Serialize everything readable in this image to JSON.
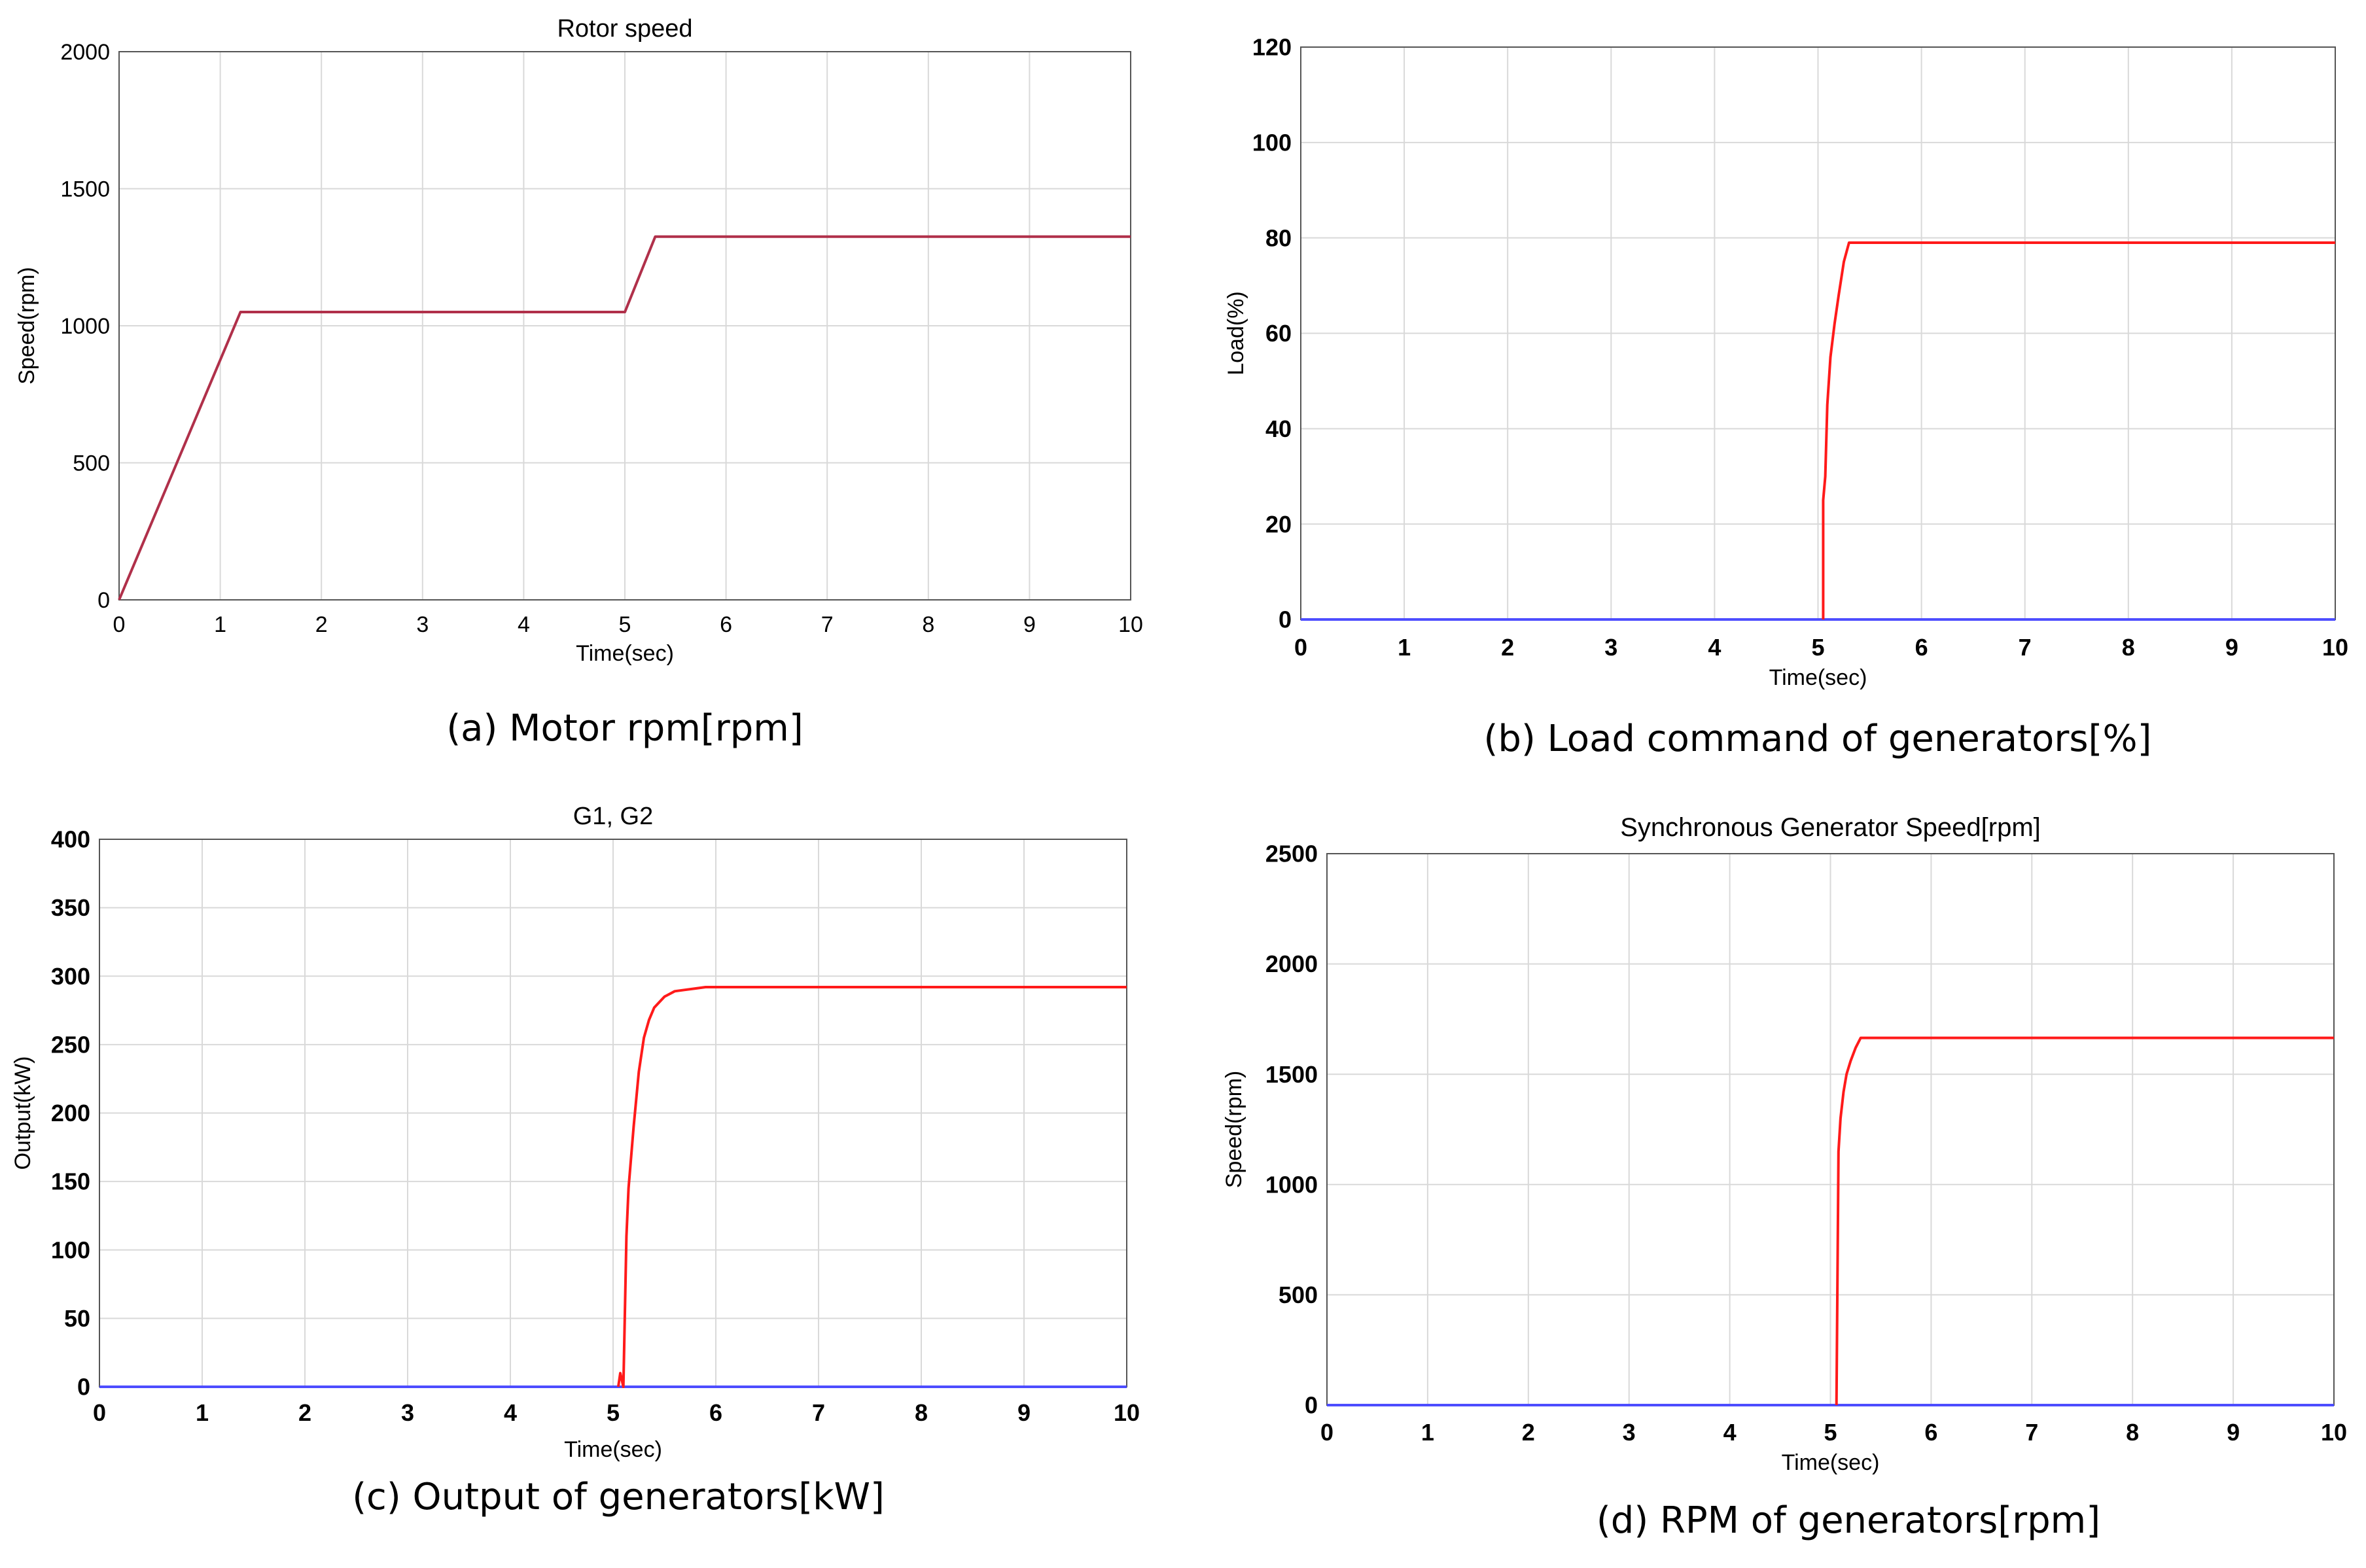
{
  "colors": {
    "series_red": "#ff1a1a",
    "series_rotor": "#b0304a",
    "series_blue": "#4d4dff",
    "grid": "#d9d9d9",
    "axis": "#000000"
  },
  "chart_data": [
    {
      "id": "a",
      "type": "line",
      "title": "Rotor speed",
      "xlabel": "Time(sec)",
      "ylabel": "Speed(rpm)",
      "caption": "(a) Motor rpm[rpm]",
      "xlim": [
        0,
        10
      ],
      "ylim": [
        0,
        2000
      ],
      "xticks": [
        0,
        1,
        2,
        3,
        4,
        5,
        6,
        7,
        8,
        9,
        10
      ],
      "yticks": [
        0,
        500,
        1000,
        1500,
        2000
      ],
      "grid": true,
      "series": [
        {
          "color_key": "series_rotor",
          "x": [
            0,
            1.2,
            5.0,
            5.3,
            10
          ],
          "y": [
            0,
            1050,
            1050,
            1325,
            1325
          ]
        }
      ]
    },
    {
      "id": "b",
      "type": "line",
      "title": "",
      "xlabel": "Time(sec)",
      "ylabel": "Load(%)",
      "caption": "(b) Load command of generators[%]",
      "xlim": [
        0,
        10
      ],
      "ylim": [
        0,
        120
      ],
      "xticks": [
        0,
        1,
        2,
        3,
        4,
        5,
        6,
        7,
        8,
        9,
        10
      ],
      "yticks": [
        0,
        20,
        40,
        60,
        80,
        100,
        120
      ],
      "grid": true,
      "series": [
        {
          "color_key": "series_blue",
          "x": [
            0,
            10
          ],
          "y": [
            0,
            0
          ]
        },
        {
          "color_key": "series_red",
          "x": [
            5.05,
            5.05,
            5.07,
            5.09,
            5.12,
            5.16,
            5.2,
            5.25,
            5.3,
            10
          ],
          "y": [
            0,
            25,
            30,
            45,
            55,
            62,
            68,
            75,
            79,
            79
          ]
        }
      ]
    },
    {
      "id": "c",
      "type": "line",
      "title": "G1, G2",
      "xlabel": "Time(sec)",
      "ylabel": "Output(kW)",
      "caption": "(c) Output of generators[kW]",
      "xlim": [
        0,
        10
      ],
      "ylim": [
        0,
        400
      ],
      "xticks": [
        0,
        1,
        2,
        3,
        4,
        5,
        6,
        7,
        8,
        9,
        10
      ],
      "yticks": [
        0,
        50,
        100,
        150,
        200,
        250,
        300,
        350,
        400
      ],
      "grid": true,
      "series": [
        {
          "color_key": "series_blue",
          "x": [
            0,
            10
          ],
          "y": [
            0,
            0
          ]
        },
        {
          "color_key": "series_red",
          "x": [
            5.05,
            5.07,
            5.1,
            5.13,
            5.15,
            5.2,
            5.25,
            5.3,
            5.35,
            5.4,
            5.5,
            5.6,
            5.7,
            5.8,
            5.9,
            6.0,
            6.5,
            7,
            8,
            9,
            10
          ],
          "y": [
            0,
            10,
            0,
            110,
            145,
            190,
            230,
            255,
            268,
            277,
            285,
            289,
            290,
            291,
            292,
            292,
            292,
            292,
            292,
            292,
            292
          ]
        }
      ]
    },
    {
      "id": "d",
      "type": "line",
      "title": "Synchronous Generator Speed[rpm]",
      "xlabel": "Time(sec)",
      "ylabel": "Speed(rpm)",
      "caption": "(d) RPM of generators[rpm]",
      "xlim": [
        0,
        10
      ],
      "ylim": [
        0,
        2500
      ],
      "xticks": [
        0,
        1,
        2,
        3,
        4,
        5,
        6,
        7,
        8,
        9,
        10
      ],
      "yticks": [
        0,
        500,
        1000,
        1500,
        2000,
        2500
      ],
      "grid": true,
      "series": [
        {
          "color_key": "series_blue",
          "x": [
            0,
            10
          ],
          "y": [
            0,
            0
          ]
        },
        {
          "color_key": "series_red",
          "x": [
            5.06,
            5.08,
            5.1,
            5.13,
            5.16,
            5.2,
            5.25,
            5.3,
            10
          ],
          "y": [
            0,
            1150,
            1300,
            1420,
            1500,
            1560,
            1620,
            1665,
            1665
          ]
        }
      ]
    }
  ]
}
